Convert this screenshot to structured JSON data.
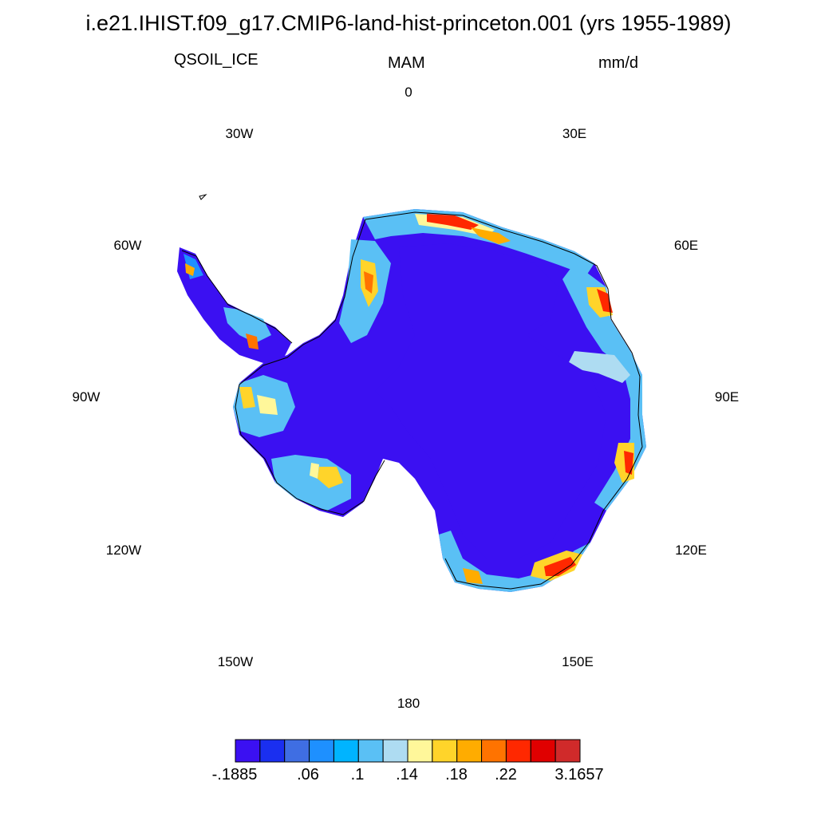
{
  "title": "i.e21.IHIST.f09_g17.CMIP6-land-hist-princeton.001 (yrs 1955-1989)",
  "variable": "QSOIL_ICE",
  "season": "MAM",
  "units": "mm/d",
  "longitude_labels": {
    "lon_0": "0",
    "lon_30e": "30E",
    "lon_60e": "60E",
    "lon_90e": "90E",
    "lon_120e": "120E",
    "lon_150e": "150E",
    "lon_180": "180",
    "lon_150w": "150W",
    "lon_120w": "120W",
    "lon_90w": "90W",
    "lon_60w": "60W",
    "lon_30w": "30W"
  },
  "colorbar": {
    "colors": [
      "#3b10f2",
      "#1a2ff0",
      "#3f6ee3",
      "#1e90ff",
      "#00b4ff",
      "#5ac0f5",
      "#aedcf2",
      "#fff79a",
      "#ffd42a",
      "#ffac00",
      "#ff7300",
      "#ff2800",
      "#e00000",
      "#d02a2a"
    ],
    "labels": [
      ".06",
      ".1",
      ".14",
      ".18",
      ".22"
    ],
    "min_label": "-.1885",
    "max_label": "3.1657"
  }
}
